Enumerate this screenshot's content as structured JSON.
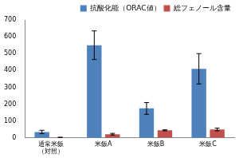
{
  "chart_data": {
    "type": "bar",
    "categories": [
      "通常米飯\n（対照）",
      "米飯A",
      "米飯B",
      "米飯C"
    ],
    "series": [
      {
        "name": "抗酸化能（ORAC値）",
        "color": "#4f81bd",
        "values": [
          35,
          550,
          175,
          410
        ],
        "errors": [
          10,
          85,
          35,
          90
        ]
      },
      {
        "name": "総フェノール含量",
        "color": "#c0504d",
        "values": [
          3,
          22,
          45,
          50
        ],
        "errors": [
          1,
          5,
          3,
          8
        ]
      }
    ],
    "ylim": [
      0,
      700
    ],
    "yticks": [
      0,
      100,
      200,
      300,
      400,
      500,
      600,
      700
    ],
    "grid": false,
    "legend": "upper right"
  }
}
